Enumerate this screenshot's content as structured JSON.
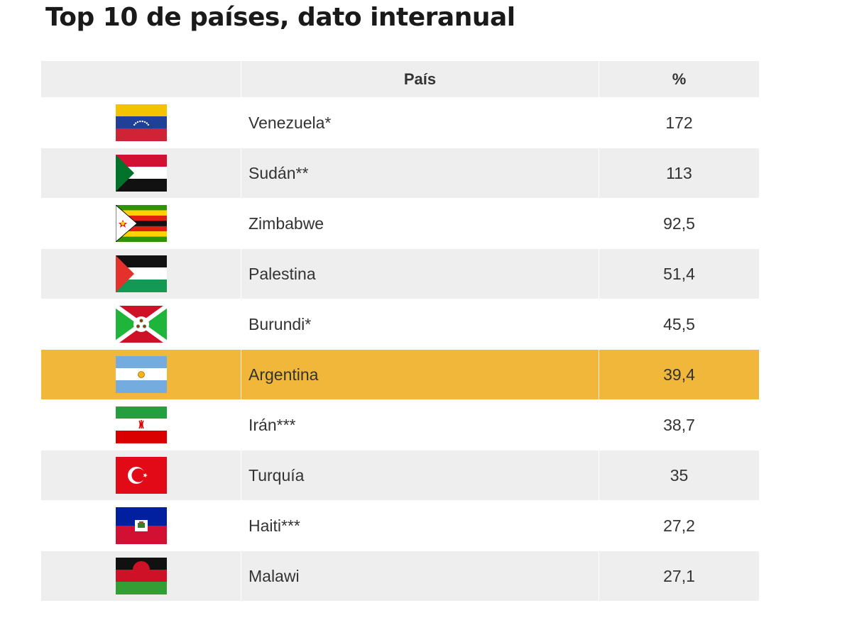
{
  "title": "Top 10 de países, dato interanual",
  "colors": {
    "row_odd": "#eeeeee",
    "row_even": "#ffffff",
    "highlight": "#f1b73a",
    "header": "#eeeeee"
  },
  "chart_data": {
    "type": "table",
    "columns": [
      "",
      "País",
      "%"
    ],
    "rows": [
      {
        "flag": "venezuela-flag",
        "country": "Venezuela*",
        "value": "172"
      },
      {
        "flag": "sudan-flag",
        "country": "Sudán**",
        "value": "113"
      },
      {
        "flag": "zimbabwe-flag",
        "country": "Zimbabwe",
        "value": "92,5"
      },
      {
        "flag": "palestine-flag",
        "country": "Palestina",
        "value": "51,4"
      },
      {
        "flag": "burundi-flag",
        "country": "Burundi*",
        "value": "45,5"
      },
      {
        "flag": "argentina-flag",
        "country": "Argentina",
        "value": "39,4",
        "highlight": true
      },
      {
        "flag": "iran-flag",
        "country": "Irán***",
        "value": "38,7"
      },
      {
        "flag": "turkey-flag",
        "country": "Turquía",
        "value": "35"
      },
      {
        "flag": "haiti-flag",
        "country": "Haiti***",
        "value": "27,2"
      },
      {
        "flag": "malawi-flag",
        "country": "Malawi",
        "value": "27,1"
      }
    ]
  }
}
